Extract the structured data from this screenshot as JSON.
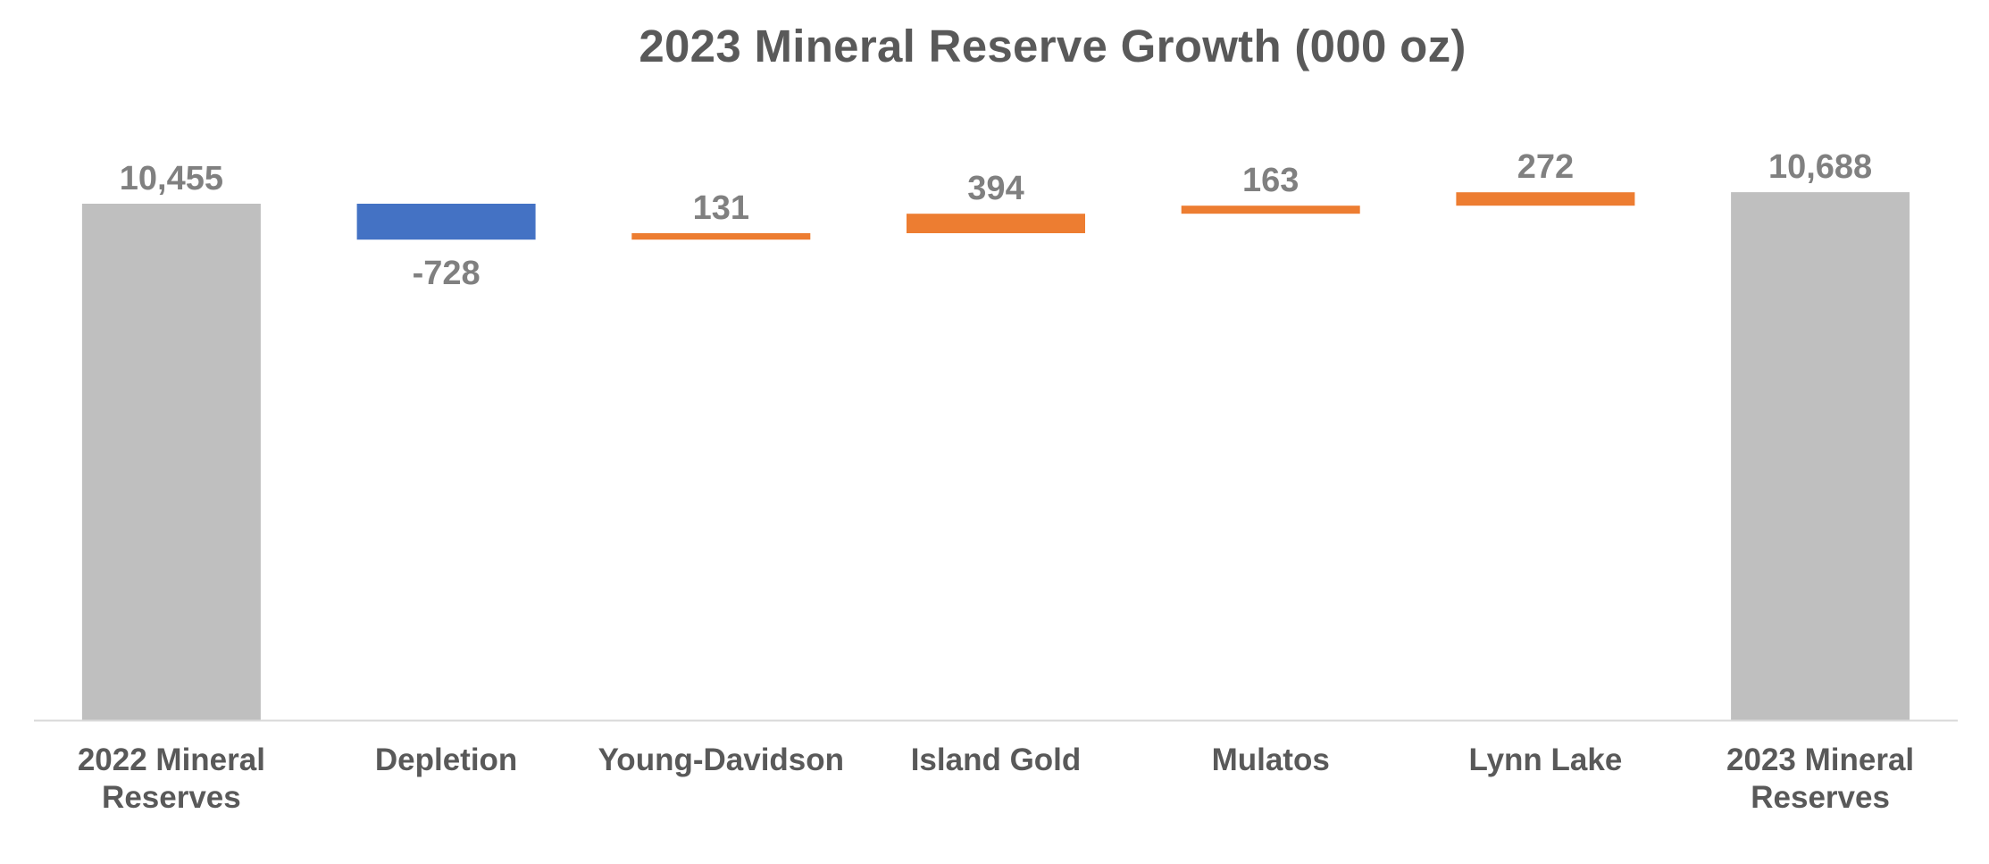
{
  "chart_data": {
    "type": "waterfall",
    "title": "2023 Mineral Reserve Growth (000 oz)",
    "categories": [
      [
        "2022 Mineral",
        "Reserves"
      ],
      [
        "Depletion"
      ],
      [
        "Young-Davidson"
      ],
      [
        "Island Gold"
      ],
      [
        "Mulatos"
      ],
      [
        "Lynn Lake"
      ],
      [
        "2023 Mineral",
        "Reserves"
      ]
    ],
    "values": [
      10455,
      -728,
      131,
      394,
      163,
      272,
      10688
    ],
    "kinds": [
      "total",
      "decrease",
      "increase",
      "increase",
      "increase",
      "increase",
      "total"
    ],
    "value_labels": [
      "10,455",
      "-728",
      "131",
      "394",
      "163",
      "272",
      "10,688"
    ],
    "ylim": [
      0,
      11000
    ],
    "grid": false,
    "legend": "none"
  },
  "colors": {
    "total": "#BFBFBF",
    "decrease": "#4472C4",
    "increase": "#ED7D31",
    "axis_line": "#D9D9D9",
    "title": "#595959",
    "value_label": "#808080",
    "category_label": "#595959"
  }
}
